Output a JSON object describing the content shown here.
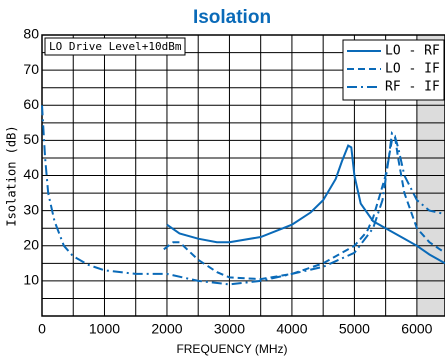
{
  "chart_data": {
    "type": "line",
    "title": "Isolation",
    "xlabel": "FREQUENCY (MHz)",
    "ylabel": "Isolation (dB)",
    "annotation": "LO Drive Level+10dBm",
    "xlim": [
      0,
      6450
    ],
    "ylim": [
      0,
      80
    ],
    "xticks": [
      0,
      1000,
      2000,
      3000,
      4000,
      5000,
      6000
    ],
    "yticks": [
      0,
      10,
      20,
      30,
      40,
      50,
      60,
      70,
      80
    ],
    "xminor": [
      500,
      1500,
      2500,
      3500,
      4500,
      5500
    ],
    "yminor": [
      5,
      15,
      25,
      35,
      45,
      55,
      65,
      75
    ],
    "shaded_region": [
      6000,
      6450
    ],
    "grid": true,
    "legend": "upper right",
    "series": [
      {
        "name": "LO - RF",
        "color": "#0a6ab8",
        "dash": "solid",
        "x": [
          2000,
          2200,
          2500,
          2800,
          3000,
          3500,
          4000,
          4300,
          4500,
          4700,
          4800,
          4900,
          4950,
          5000,
          5100,
          5300,
          5500,
          5800,
          6000,
          6200,
          6450
        ],
        "values": [
          26,
          23.5,
          22,
          21,
          21,
          22.5,
          26,
          29.5,
          33,
          39,
          44,
          48.5,
          48,
          40,
          32,
          27,
          25,
          22,
          20,
          17.5,
          15
        ]
      },
      {
        "name": "LO - IF",
        "color": "#0a6ab8",
        "dash": "dashed",
        "x": [
          1950,
          2100,
          2200,
          2500,
          2800,
          3000,
          3500,
          4000,
          4500,
          4800,
          5000,
          5200,
          5300,
          5400,
          5500,
          5600,
          5650,
          5700,
          5800,
          6000,
          6200,
          6450
        ],
        "values": [
          19,
          21,
          21,
          16,
          12.5,
          11,
          10.5,
          12,
          15,
          18,
          20,
          24,
          28,
          34,
          40,
          50,
          51,
          45,
          35,
          25,
          21,
          18
        ]
      },
      {
        "name": "RF - IF",
        "color": "#0a6ab8",
        "dash": "dashdot",
        "x": [
          0,
          50,
          100,
          200,
          350,
          500,
          750,
          1000,
          1500,
          2000,
          2500,
          3000,
          3500,
          4000,
          4500,
          5000,
          5300,
          5450,
          5550,
          5600,
          5650,
          5700,
          5800,
          6000,
          6200,
          6450
        ],
        "values": [
          60,
          45,
          35,
          27,
          20,
          17,
          14.5,
          13,
          12,
          12,
          10,
          9,
          10,
          12,
          14,
          18,
          25,
          33,
          45,
          52,
          51,
          48,
          40,
          33,
          30,
          29
        ]
      }
    ]
  }
}
